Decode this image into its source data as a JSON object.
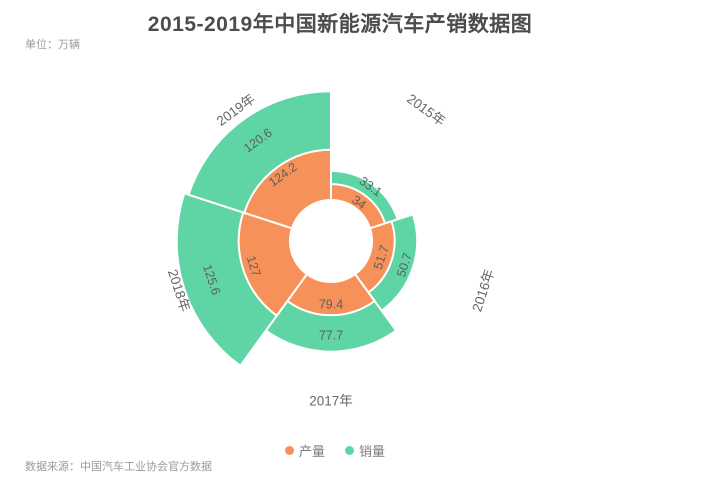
{
  "title": "2015-2019年中国新能源汽车产销数据图",
  "unit_label": "单位：万辆",
  "source_label": "数据来源：中国汽车工业协会官方数据",
  "legend": [
    {
      "label": "产量",
      "color": "#f7915a"
    },
    {
      "label": "销量",
      "color": "#5fd5a6"
    }
  ],
  "chart_data": {
    "type": "rose-polar-bar",
    "title": "2015-2019年中国新能源汽车产销数据图",
    "unit": "万辆",
    "categories": [
      "2015年",
      "2016年",
      "2017年",
      "2018年",
      "2019年"
    ],
    "series": [
      {
        "name": "产量",
        "key": "production",
        "color": "#f7915a",
        "values": [
          34,
          51.7,
          79.4,
          127,
          124.2
        ],
        "radius_base": 44,
        "radius_scale": 0.38
      },
      {
        "name": "销量",
        "key": "sales",
        "color": "#5fd5a6",
        "values": [
          33.1,
          50.7,
          77.7,
          125.6,
          120.6
        ],
        "radius_base": 40,
        "radius_scale": 0.91
      }
    ],
    "start_angle": 90,
    "clockwise": true,
    "slice_angle": 72,
    "center": [
      331,
      241
    ],
    "inner_radius": 41,
    "category_label_radius": 161,
    "category_label_color": "#666666",
    "value_label_color": "#5e5e5e",
    "sector_border_color": "#ffffff",
    "sector_border_width": 2,
    "legend_position": "bottom"
  }
}
